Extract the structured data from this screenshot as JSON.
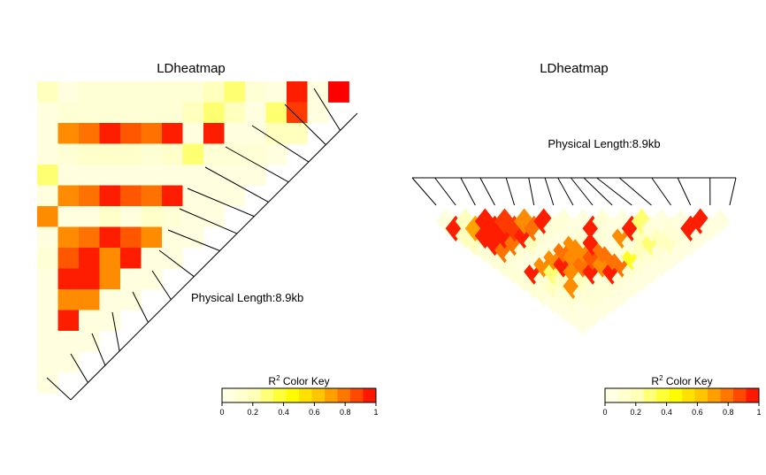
{
  "chart_data": [
    {
      "type": "heatmap",
      "title": "LDheatmap",
      "annotation": "Physical Length:8.9kb",
      "layout": "flipped-left",
      "n": 16,
      "upper_triangle_rows": [
        [
          0.2,
          0.05,
          0.1,
          0.1,
          0.1,
          0.1,
          0.1,
          0.1,
          0.2,
          0.3,
          0.1,
          0.05,
          0.95,
          0.05,
          1.0
        ],
        [
          0.05,
          0.1,
          0.1,
          0.1,
          0.1,
          0.1,
          0.1,
          0.2,
          0.3,
          0.2,
          0.05,
          0.3,
          0.9,
          0.05
        ],
        [
          0.05,
          0.75,
          0.8,
          0.95,
          0.85,
          0.8,
          0.95,
          0.05,
          0.95,
          0.05,
          0.05,
          0.2,
          0.2
        ],
        [
          0.05,
          0.1,
          0.15,
          0.15,
          0.15,
          0.1,
          0.15,
          0.3,
          0.1,
          0.1,
          0.1,
          0.05
        ],
        [
          0.3,
          0.05,
          0.05,
          0.05,
          0.05,
          0.05,
          0.05,
          0.05,
          0.05,
          0.05,
          0.05
        ],
        [
          0.05,
          0.75,
          0.8,
          0.95,
          0.85,
          0.8,
          0.95,
          0.05,
          0.05,
          0.05
        ],
        [
          0.75,
          0.05,
          0.05,
          0.15,
          0.05,
          0.15,
          0.1,
          0.05,
          0.05
        ],
        [
          0.05,
          0.75,
          0.8,
          0.95,
          0.85,
          0.75,
          0.05,
          0.05
        ],
        [
          0.1,
          0.85,
          0.95,
          0.75,
          0.95,
          0.05,
          0.05
        ],
        [
          0.05,
          0.95,
          0.95,
          0.75,
          0.05,
          0.05
        ],
        [
          0.05,
          0.75,
          0.75,
          0.05,
          0.05
        ],
        [
          0.05,
          0.95,
          0.05,
          0.05
        ],
        [
          0.05,
          0.05,
          0.05
        ],
        [
          0.05,
          0.05
        ],
        [
          0.05
        ]
      ],
      "snp_positions": [
        0,
        0.06,
        0.12,
        0.17,
        0.27,
        0.35,
        0.43,
        0.52,
        0.58,
        0.64,
        0.69,
        0.76,
        0.83,
        0.89,
        0.94,
        1.0
      ],
      "color_key": {
        "title_base": "R",
        "title_sup": "2",
        "title_rest": " Color Key",
        "range": [
          0,
          1
        ],
        "ticks": [
          "0",
          "0.2",
          "0.4",
          "0.6",
          "0.8",
          "1"
        ]
      }
    },
    {
      "type": "heatmap",
      "title": "LDheatmap",
      "annotation": "Physical Length:8.9kb",
      "layout": "rotated-down",
      "n": 16,
      "upper_triangle_rows": [
        [
          0.05,
          0.95,
          0.2,
          0.2,
          0.1,
          0.1,
          0.1,
          0.1,
          0.1,
          0.1,
          0.1,
          0.05,
          0.05,
          0.05,
          0.05
        ],
        [
          0.2,
          0.7,
          0.95,
          0.95,
          0.8,
          0.1,
          0.05,
          0.95,
          0.1,
          0.2,
          0.1,
          0.1,
          0.05,
          0.05
        ],
        [
          0.95,
          0.95,
          0.95,
          0.8,
          0.1,
          0.05,
          0.75,
          0.3,
          0.2,
          0.75,
          0.1,
          0.1,
          0.05
        ],
        [
          0.9,
          0.9,
          0.95,
          0.2,
          0.05,
          0.75,
          0.95,
          0.75,
          0.2,
          0.1,
          0.1,
          0.05
        ],
        [
          0.75,
          0.8,
          0.1,
          0.05,
          0.8,
          0.75,
          0.8,
          0.95,
          0.1,
          0.1,
          0.05
        ],
        [
          0.95,
          0.1,
          0.05,
          0.75,
          0.75,
          0.85,
          0.75,
          0.95,
          0.1,
          0.05
        ],
        [
          0.1,
          0.05,
          0.1,
          0.95,
          0.8,
          0.8,
          0.8,
          0.1,
          0.05
        ],
        [
          0.05,
          0.95,
          0.1,
          0.05,
          0.1,
          0.4,
          0.1,
          0.05
        ],
        [
          0.1,
          0.05,
          0.75,
          0.1,
          0.2,
          0.1,
          0.05
        ],
        [
          0.05,
          0.95,
          0.2,
          0.3,
          0.1,
          0.05
        ],
        [
          0.3,
          0.1,
          0.2,
          0.2,
          0.05
        ],
        [
          0.05,
          0.1,
          0.1,
          0.05
        ],
        [
          0.05,
          0.95,
          0.05
        ],
        [
          0.95,
          0.05
        ],
        [
          0.05
        ]
      ],
      "snp_positions": [
        0,
        0.07,
        0.15,
        0.21,
        0.29,
        0.36,
        0.41,
        0.45,
        0.49,
        0.53,
        0.57,
        0.64,
        0.74,
        0.82,
        0.92,
        1.0
      ],
      "color_key": {
        "title_base": "R",
        "title_sup": "2",
        "title_rest": " Color Key",
        "range": [
          0,
          1
        ],
        "ticks": [
          "0",
          "0.2",
          "0.4",
          "0.6",
          "0.8",
          "1"
        ]
      }
    }
  ]
}
